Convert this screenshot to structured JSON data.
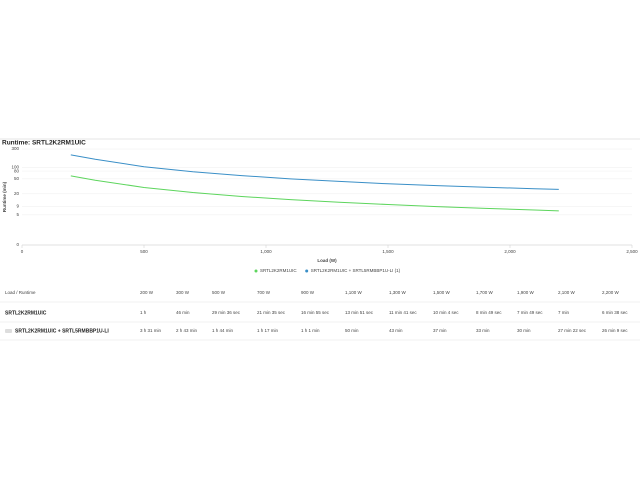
{
  "chart_data": {
    "type": "line",
    "title": "Runtime: SRTL2K2RM1UIC",
    "x_label": "Load (W)",
    "y_label": "Runtime (min)",
    "x": [
      200,
      300,
      500,
      700,
      900,
      1100,
      1300,
      1500,
      1700,
      1900,
      2100,
      2200
    ],
    "series": [
      {
        "name": "SRTL2K2RM1UIC",
        "color": "#5dd55d",
        "values": [
          60,
          46,
          29.6,
          21.6,
          16.9,
          13.85,
          11.7,
          10.1,
          8.8,
          7.8,
          7,
          6.6
        ]
      },
      {
        "name": "SRTL2K2RM1UIC + SRTL5RMBBP1U-LI (1)",
        "color": "#3a8fc7",
        "values": [
          211,
          163,
          104,
          77,
          61,
          50,
          43,
          37,
          33,
          30,
          27.4,
          26.2
        ]
      }
    ],
    "xlim": [
      0,
      2500
    ],
    "xticks": [
      0,
      500,
      {
        "value": 1000,
        "label": "1,000"
      },
      {
        "value": 1500,
        "label": "1,500"
      },
      {
        "value": 2000,
        "label": "2,000"
      },
      {
        "value": 2500,
        "label": "2,500"
      }
    ],
    "ylim": [
      0,
      300
    ],
    "yticks": [
      0,
      5,
      9,
      20,
      50,
      80,
      100,
      300
    ],
    "yscale": "log1p",
    "grid": true
  },
  "table": {
    "header": [
      "Load / Runtime",
      "200 W",
      "300 W",
      "500 W",
      "700 W",
      "900 W",
      "1,100 W",
      "1,300 W",
      "1,500 W",
      "1,700 W",
      "1,900 W",
      "2,100 W",
      "2,200 W"
    ],
    "rows": [
      [
        "SRTL2K2RM1UIC",
        "1 h",
        "46 min",
        "29 min 36 sec",
        "21 min 35 sec",
        "16 min 55 sec",
        "13 min 51 sec",
        "11 min 41 sec",
        "10 min 4 sec",
        "8 min 49 sec",
        "7 min 49 sec",
        "7 min",
        "6 min 38 sec"
      ],
      [
        "SRTL2K2RM1UIC + SRTL5RMBBP1U-LI",
        "3 h 31 min",
        "2 h 43 min",
        "1 h 44 min",
        "1 h 17 min",
        "1 h 1 min",
        "50 min",
        "43 min",
        "37 min",
        "33 min",
        "30 min",
        "27 min 22 sec",
        "26 min 9 sec"
      ]
    ]
  }
}
